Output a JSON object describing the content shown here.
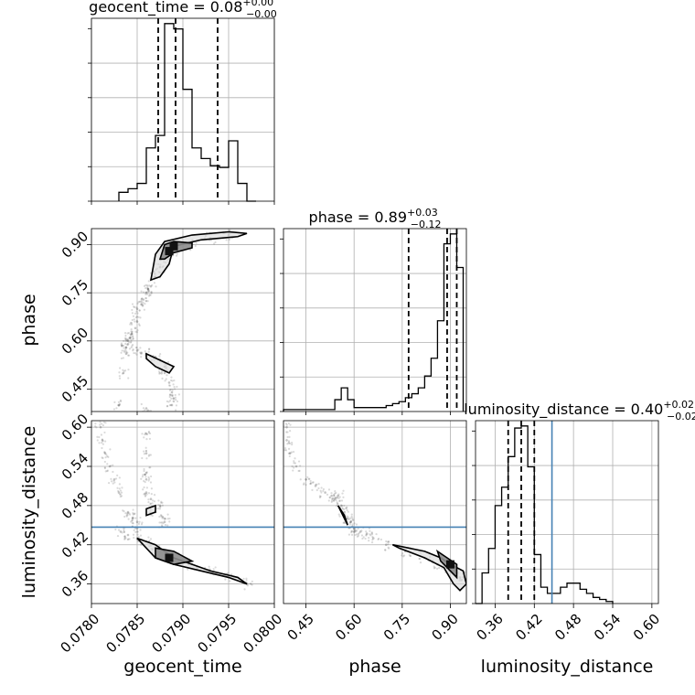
{
  "chart_data": {
    "type": "corner",
    "parameters": [
      "geocent_time",
      "phase",
      "luminosity_distance"
    ],
    "axis_labels": {
      "geocent_time": "geocent_time",
      "phase": "phase",
      "luminosity_distance": "luminosity_distance"
    },
    "ranges": {
      "geocent_time": [
        0.078,
        0.08
      ],
      "phase": [
        0.38,
        0.95
      ],
      "luminosity_distance": [
        0.33,
        0.61
      ]
    },
    "ticks": {
      "geocent_time": {
        "values": [
          0.078,
          0.0785,
          0.079,
          0.0795,
          0.08
        ],
        "labels": [
          "0.0780",
          "0.0785",
          "0.0790",
          "0.0795",
          "0.0800"
        ]
      },
      "phase": {
        "values": [
          0.45,
          0.6,
          0.75,
          0.9
        ],
        "labels": [
          "0.45",
          "0.60",
          "0.75",
          "0.90"
        ]
      },
      "luminosity_distance": {
        "values": [
          0.36,
          0.42,
          0.48,
          0.54,
          0.6
        ],
        "labels": [
          "0.36",
          "0.42",
          "0.48",
          "0.54",
          "0.60"
        ]
      }
    },
    "titles": {
      "geocent_time": {
        "prefix": "geocent_time = ",
        "value": "0.08",
        "upper": "+0.00",
        "lower": "−0.00"
      },
      "phase": {
        "prefix": "phase = ",
        "value": "0.89",
        "upper": "+0.03",
        "lower": "−0.12"
      },
      "luminosity_distance": {
        "prefix": "luminosity_distance = ",
        "value": "0.40",
        "upper": "+0.02",
        "lower": "−0.02"
      }
    },
    "quantiles": {
      "geocent_time": [
        0.07873,
        0.07892,
        0.07938
      ],
      "phase": [
        0.77,
        0.89,
        0.92
      ],
      "luminosity_distance": [
        0.38,
        0.4,
        0.42
      ]
    },
    "truths": {
      "luminosity_distance": 0.447
    },
    "histograms": {
      "geocent_time": {
        "edges": [
          0.0783,
          0.0784,
          0.0785,
          0.0786,
          0.0787,
          0.0788,
          0.0789,
          0.079,
          0.0791,
          0.0792,
          0.0793,
          0.0794,
          0.0795,
          0.0796,
          0.0797,
          0.0798
        ],
        "counts": [
          0.05,
          0.07,
          0.1,
          0.3,
          0.37,
          1.0,
          0.97,
          0.63,
          0.3,
          0.24,
          0.2,
          0.19,
          0.34,
          0.1,
          0.0
        ]
      },
      "phase": {
        "edges": [
          0.38,
          0.4,
          0.42,
          0.44,
          0.46,
          0.48,
          0.5,
          0.52,
          0.54,
          0.56,
          0.58,
          0.6,
          0.62,
          0.64,
          0.66,
          0.68,
          0.7,
          0.72,
          0.74,
          0.76,
          0.78,
          0.8,
          0.82,
          0.84,
          0.86,
          0.88,
          0.9,
          0.92,
          0.94
        ],
        "counts": [
          0.01,
          0.01,
          0.01,
          0.01,
          0.01,
          0.01,
          0.01,
          0.01,
          0.06,
          0.12,
          0.06,
          0.02,
          0.02,
          0.02,
          0.02,
          0.02,
          0.03,
          0.04,
          0.05,
          0.07,
          0.09,
          0.12,
          0.18,
          0.27,
          0.46,
          0.85,
          0.9,
          0.73
        ]
      },
      "luminosity_distance": {
        "edges": [
          0.33,
          0.34,
          0.35,
          0.36,
          0.37,
          0.38,
          0.39,
          0.4,
          0.41,
          0.42,
          0.43,
          0.44,
          0.45,
          0.46,
          0.47,
          0.48,
          0.49,
          0.5,
          0.51,
          0.52,
          0.53,
          0.54
        ],
        "counts": [
          0.0,
          0.15,
          0.27,
          0.48,
          0.57,
          0.72,
          0.86,
          0.87,
          0.67,
          0.24,
          0.08,
          0.05,
          0.05,
          0.08,
          0.1,
          0.1,
          0.07,
          0.05,
          0.03,
          0.02,
          0.01
        ]
      }
    },
    "panels2d": [
      {
        "x": "geocent_time",
        "y": "phase",
        "samples": [
          [
            0.0783,
            0.4
          ],
          [
            0.07835,
            0.5
          ],
          [
            0.07838,
            0.56
          ],
          [
            0.0784,
            0.6
          ],
          [
            0.07843,
            0.62
          ],
          [
            0.07848,
            0.64
          ],
          [
            0.0785,
            0.66
          ],
          [
            0.0785,
            0.7
          ],
          [
            0.07855,
            0.73
          ],
          [
            0.0786,
            0.75
          ],
          [
            0.07865,
            0.77
          ],
          [
            0.0787,
            0.8
          ],
          [
            0.07875,
            0.83
          ],
          [
            0.0788,
            0.86
          ],
          [
            0.0789,
            0.88
          ],
          [
            0.0791,
            0.9
          ],
          [
            0.0793,
            0.92
          ],
          [
            0.0795,
            0.93
          ],
          [
            0.07838,
            0.58
          ],
          [
            0.0785,
            0.57
          ],
          [
            0.0786,
            0.56
          ],
          [
            0.0787,
            0.55
          ],
          [
            0.0788,
            0.52
          ],
          [
            0.0788,
            0.5
          ],
          [
            0.07885,
            0.47
          ],
          [
            0.07888,
            0.44
          ],
          [
            0.0789,
            0.42
          ],
          [
            0.07888,
            0.4
          ],
          [
            0.0786,
            0.39
          ],
          [
            0.0784,
            0.59
          ],
          [
            0.07842,
            0.61
          ],
          [
            0.07856,
            0.71
          ],
          [
            0.07862,
            0.76
          ]
        ],
        "contours": [
          [
            [
              0.07865,
              0.79
            ],
            [
              0.0787,
              0.87
            ],
            [
              0.0788,
              0.91
            ],
            [
              0.0791,
              0.93
            ],
            [
              0.0795,
              0.94
            ],
            [
              0.0797,
              0.935
            ],
            [
              0.0796,
              0.925
            ],
            [
              0.0792,
              0.915
            ],
            [
              0.0789,
              0.895
            ],
            [
              0.07885,
              0.84
            ],
            [
              0.07875,
              0.8
            ]
          ],
          [
            [
              0.07875,
              0.855
            ],
            [
              0.0788,
              0.9
            ],
            [
              0.0789,
              0.91
            ],
            [
              0.0791,
              0.905
            ],
            [
              0.0791,
              0.89
            ],
            [
              0.0789,
              0.875
            ],
            [
              0.0788,
              0.855
            ]
          ],
          [
            [
              0.0786,
              0.56
            ],
            [
              0.07875,
              0.54
            ],
            [
              0.0789,
              0.52
            ],
            [
              0.07885,
              0.5
            ],
            [
              0.0787,
              0.52
            ],
            [
              0.0786,
              0.545
            ]
          ]
        ],
        "peaks": [
          [
            0.07885,
            0.88
          ],
          [
            0.0789,
            0.895
          ]
        ]
      },
      {
        "x": "geocent_time",
        "y": "luminosity_distance",
        "samples": [
          [
            0.0781,
            0.6
          ],
          [
            0.07812,
            0.58
          ],
          [
            0.07815,
            0.56
          ],
          [
            0.0782,
            0.54
          ],
          [
            0.07825,
            0.52
          ],
          [
            0.0783,
            0.5
          ],
          [
            0.0784,
            0.47
          ],
          [
            0.07845,
            0.46
          ],
          [
            0.0785,
            0.455
          ],
          [
            0.0786,
            0.5
          ],
          [
            0.0786,
            0.53
          ],
          [
            0.0786,
            0.56
          ],
          [
            0.0786,
            0.59
          ],
          [
            0.07865,
            0.49
          ],
          [
            0.0787,
            0.47
          ],
          [
            0.07875,
            0.48
          ],
          [
            0.0788,
            0.46
          ],
          [
            0.07832,
            0.44
          ],
          [
            0.0784,
            0.435
          ],
          [
            0.0785,
            0.43
          ],
          [
            0.0786,
            0.425
          ],
          [
            0.0787,
            0.41
          ],
          [
            0.0789,
            0.4
          ],
          [
            0.0791,
            0.39
          ],
          [
            0.0793,
            0.38
          ],
          [
            0.0795,
            0.37
          ],
          [
            0.0797,
            0.36
          ],
          [
            0.0785,
            0.445
          ],
          [
            0.0788,
            0.455
          ],
          [
            0.0786,
            0.52
          ]
        ],
        "contours": [
          [
            [
              0.0785,
              0.43
            ],
            [
              0.0787,
              0.42
            ],
            [
              0.0789,
              0.4
            ],
            [
              0.0791,
              0.39
            ],
            [
              0.0793,
              0.38
            ],
            [
              0.0796,
              0.37
            ],
            [
              0.0797,
              0.36
            ],
            [
              0.0795,
              0.37
            ],
            [
              0.0792,
              0.38
            ],
            [
              0.0789,
              0.39
            ],
            [
              0.0787,
              0.4
            ],
            [
              0.0786,
              0.415
            ]
          ],
          [
            [
              0.0787,
              0.415
            ],
            [
              0.0789,
              0.41
            ],
            [
              0.0791,
              0.395
            ],
            [
              0.0789,
              0.39
            ],
            [
              0.0787,
              0.4
            ]
          ],
          [
            [
              0.0786,
              0.475
            ],
            [
              0.0787,
              0.48
            ],
            [
              0.0787,
              0.47
            ],
            [
              0.0786,
              0.465
            ]
          ]
        ],
        "peaks": [
          [
            0.07885,
            0.4
          ]
        ]
      },
      {
        "x": "phase",
        "y": "luminosity_distance",
        "samples": [
          [
            0.39,
            0.6
          ],
          [
            0.39,
            0.58
          ],
          [
            0.4,
            0.56
          ],
          [
            0.42,
            0.54
          ],
          [
            0.45,
            0.52
          ],
          [
            0.48,
            0.51
          ],
          [
            0.51,
            0.5
          ],
          [
            0.54,
            0.49
          ],
          [
            0.56,
            0.48
          ],
          [
            0.57,
            0.47
          ],
          [
            0.58,
            0.46
          ],
          [
            0.6,
            0.445
          ],
          [
            0.62,
            0.44
          ],
          [
            0.66,
            0.43
          ],
          [
            0.7,
            0.42
          ],
          [
            0.76,
            0.41
          ],
          [
            0.82,
            0.4
          ],
          [
            0.86,
            0.39
          ],
          [
            0.9,
            0.38
          ],
          [
            0.93,
            0.37
          ],
          [
            0.59,
            0.455
          ],
          [
            0.55,
            0.495
          ],
          [
            0.53,
            0.495
          ],
          [
            0.6,
            0.44
          ],
          [
            0.64,
            0.437
          ]
        ],
        "contours": [
          [
            [
              0.72,
              0.42
            ],
            [
              0.82,
              0.41
            ],
            [
              0.87,
              0.4
            ],
            [
              0.9,
              0.39
            ],
            [
              0.94,
              0.38
            ],
            [
              0.95,
              0.36
            ],
            [
              0.93,
              0.35
            ],
            [
              0.91,
              0.36
            ],
            [
              0.88,
              0.385
            ],
            [
              0.82,
              0.4
            ],
            [
              0.74,
              0.415
            ]
          ],
          [
            [
              0.86,
              0.41
            ],
            [
              0.89,
              0.4
            ],
            [
              0.92,
              0.39
            ],
            [
              0.92,
              0.37
            ],
            [
              0.9,
              0.38
            ],
            [
              0.87,
              0.395
            ]
          ],
          [
            [
              0.55,
              0.48
            ],
            [
              0.57,
              0.465
            ],
            [
              0.58,
              0.45
            ],
            [
              0.57,
              0.46
            ],
            [
              0.56,
              0.47
            ]
          ]
        ],
        "peaks": [
          [
            0.9,
            0.39
          ]
        ]
      }
    ],
    "colors": {
      "line": "#000000",
      "truth": "#4682b4",
      "grid": "#b0b0b0",
      "fill": "#8c8c8c",
      "scatter": "#555555"
    }
  }
}
